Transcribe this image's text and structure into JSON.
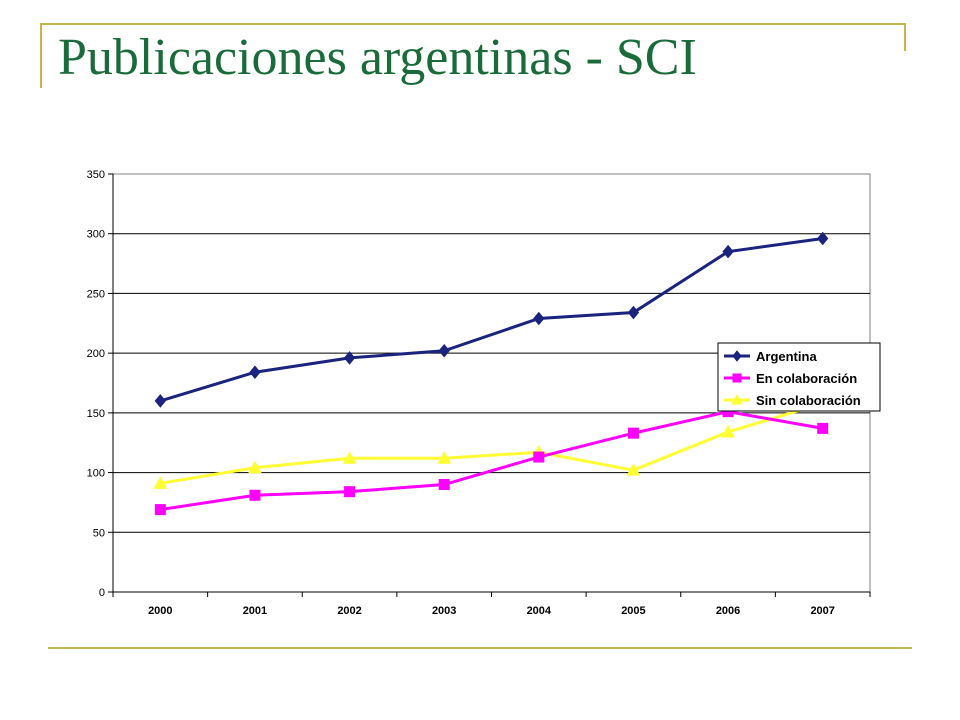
{
  "slide": {
    "title": "Publicaciones argentinas - SCI",
    "accent_color": "#c8b44a",
    "title_color": "#1a6b3a"
  },
  "chart_data": {
    "type": "line",
    "title": "",
    "xlabel": "",
    "ylabel": "",
    "categories": [
      "2000",
      "2001",
      "2002",
      "2003",
      "2004",
      "2005",
      "2006",
      "2007"
    ],
    "ylim": [
      0,
      350
    ],
    "yticks": [
      0,
      50,
      100,
      150,
      200,
      250,
      300,
      350
    ],
    "grid": true,
    "legend_position": "right",
    "series": [
      {
        "name": "Argentina",
        "color": "#1a237e",
        "marker": "diamond",
        "values": [
          160,
          184,
          196,
          202,
          229,
          234,
          285,
          296
        ]
      },
      {
        "name": "En colaboración",
        "color": "#ff00ff",
        "marker": "square",
        "values": [
          69,
          81,
          84,
          90,
          113,
          133,
          151,
          137
        ]
      },
      {
        "name": "Sin colaboración",
        "color": "#ffff33",
        "marker": "triangle",
        "values": [
          91,
          104,
          112,
          112,
          117,
          102,
          134,
          158
        ]
      }
    ]
  }
}
